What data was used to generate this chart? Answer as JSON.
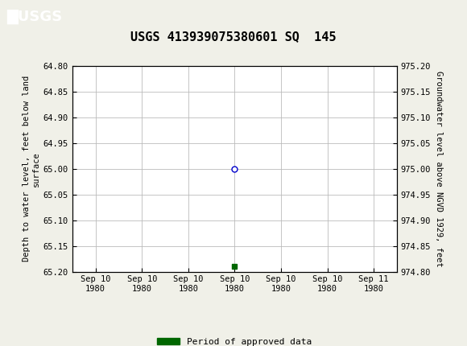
{
  "title": "USGS 413939075380601 SQ  145",
  "ylabel_left": "Depth to water level, feet below land\nsurface",
  "ylabel_right": "Groundwater level above NGVD 1929, feet",
  "ylim_left": [
    65.2,
    64.8
  ],
  "ylim_right": [
    974.8,
    975.2
  ],
  "yticks_left": [
    64.8,
    64.85,
    64.9,
    64.95,
    65.0,
    65.05,
    65.1,
    65.15,
    65.2
  ],
  "yticks_right": [
    975.2,
    975.15,
    975.1,
    975.05,
    975.0,
    974.95,
    974.9,
    974.85,
    974.8
  ],
  "data_point_y": 65.0,
  "data_point_color": "#0000cc",
  "data_square_y": 65.19,
  "data_square_color": "#006600",
  "header_bg_color": "#1a6b3c",
  "grid_color": "#bbbbbb",
  "bg_color": "#f0f0e8",
  "plot_bg_color": "#ffffff",
  "legend_label": "Period of approved data",
  "legend_color": "#006600",
  "tick_label_fontsize": 7.5,
  "title_fontsize": 11,
  "axis_label_fontsize": 7.5,
  "xtick_labels": [
    "Sep 10\n1980",
    "Sep 10\n1980",
    "Sep 10\n1980",
    "Sep 10\n1980",
    "Sep 10\n1980",
    "Sep 10\n1980",
    "Sep 11\n1980"
  ],
  "xtick_positions": [
    -3,
    -2,
    -1,
    0,
    1,
    2,
    3
  ],
  "xmin": -3.5,
  "xmax": 3.5
}
